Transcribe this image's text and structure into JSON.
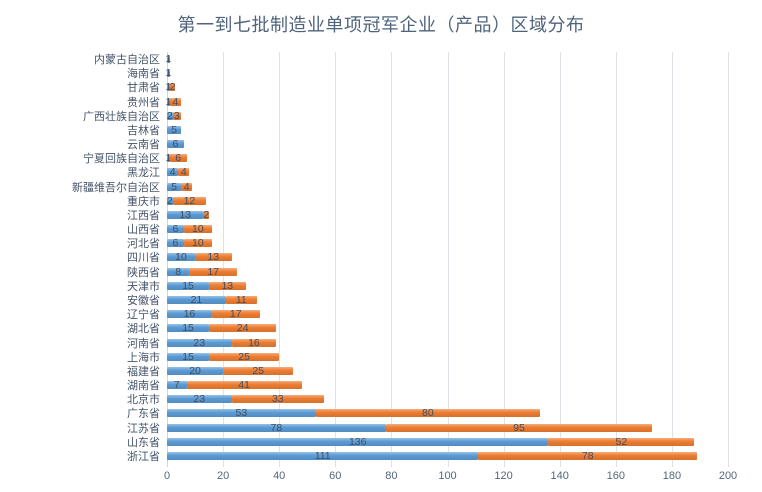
{
  "title": "第一到七批制造业单项冠军企业（产品）区域分布",
  "colors": {
    "series_blue": "#5B9BD5",
    "series_orange": "#ED7D31",
    "gridline": "#DDE2E9",
    "title_text": "#4F637C",
    "category_text": "#44546A",
    "value_text": "#3F4E63",
    "tick_text": "#55677C",
    "background": "#FFFFFF"
  },
  "chart_data": {
    "type": "bar",
    "orientation": "horizontal",
    "stacked": true,
    "title": "第一到七批制造业单项冠军企业（产品）区域分布",
    "xlabel": "",
    "ylabel": "",
    "xlim": [
      0,
      200
    ],
    "xticks": [
      0,
      20,
      40,
      60,
      80,
      100,
      120,
      140,
      160,
      180,
      200
    ],
    "grid": true,
    "legend": "none",
    "value_labels": true,
    "categories": [
      "内蒙古自治区",
      "海南省",
      "甘肃省",
      "贵州省",
      "广西壮族自治区",
      "吉林省",
      "云南省",
      "宁夏回族自治区",
      "黑龙江",
      "新疆维吾尔自治区",
      "重庆市",
      "江西省",
      "山西省",
      "河北省",
      "四川省",
      "陕西省",
      "天津市",
      "安徽省",
      "辽宁省",
      "湖北省",
      "河南省",
      "上海市",
      "福建省",
      "湖南省",
      "北京市",
      "广东省",
      "江苏省",
      "山东省",
      "浙江省"
    ],
    "series": [
      {
        "name": "series-1-blue",
        "color": "#5B9BD5",
        "values": [
          1,
          1,
          1,
          1,
          2,
          5,
          6,
          1,
          4,
          5,
          2,
          13,
          6,
          6,
          10,
          8,
          15,
          21,
          16,
          15,
          23,
          15,
          20,
          7,
          23,
          53,
          78,
          136,
          111
        ]
      },
      {
        "name": "series-2-orange",
        "color": "#ED7D31",
        "values": [
          0,
          0,
          2,
          4,
          3,
          0,
          0,
          6,
          4,
          4,
          12,
          2,
          10,
          10,
          13,
          17,
          13,
          11,
          17,
          24,
          16,
          25,
          25,
          41,
          33,
          80,
          95,
          52,
          78
        ]
      }
    ]
  }
}
